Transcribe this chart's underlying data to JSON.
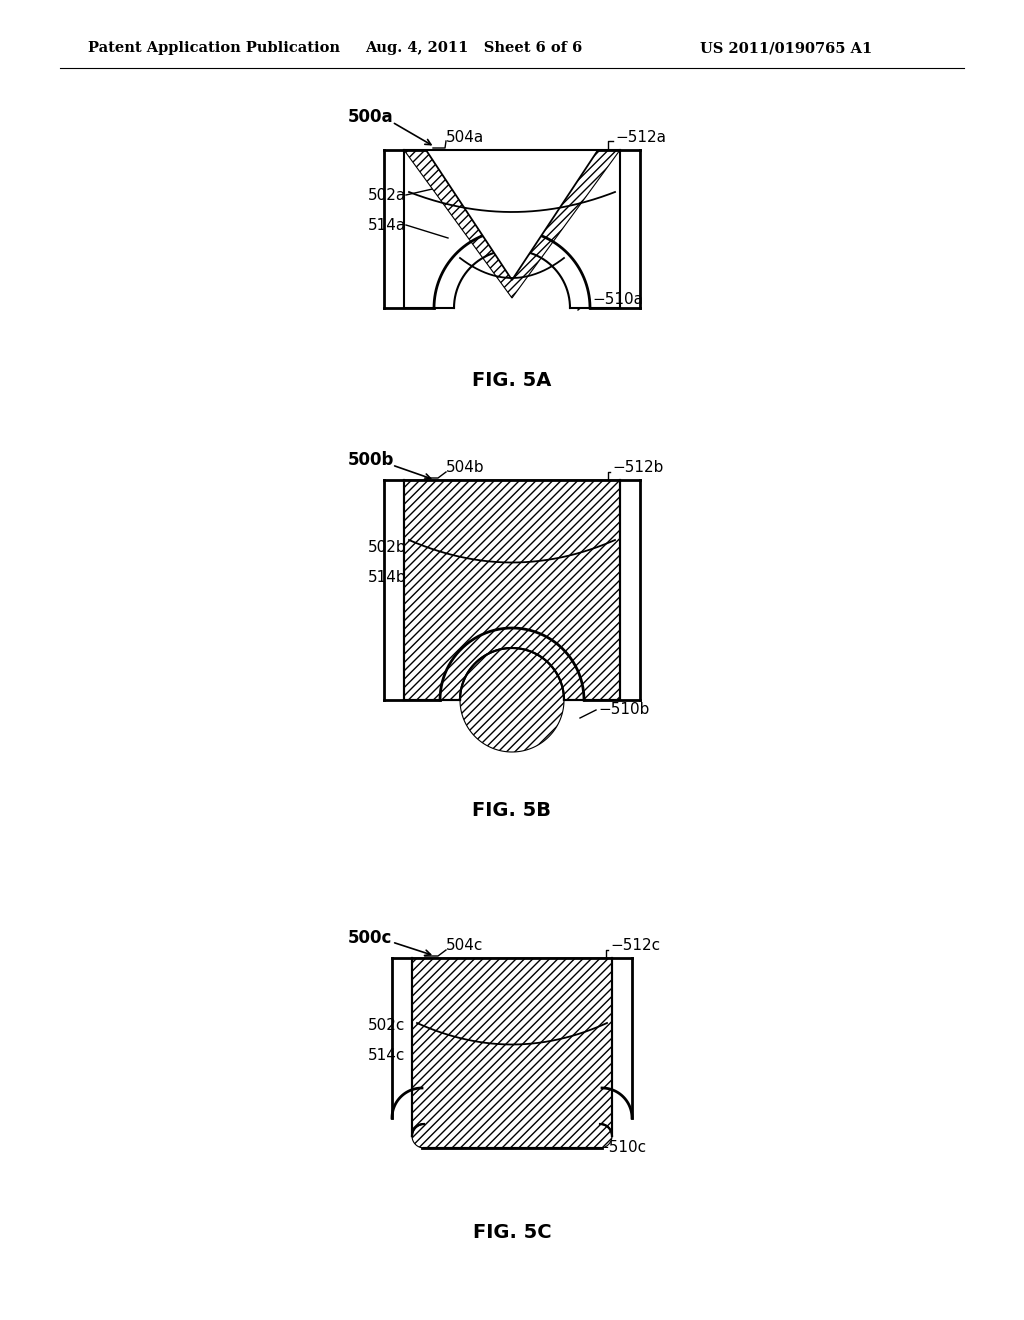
{
  "header_left": "Patent Application Publication",
  "header_mid": "Aug. 4, 2011   Sheet 6 of 6",
  "header_right": "US 2011/0190765 A1",
  "background_color": "#ffffff",
  "line_color": "#000000"
}
